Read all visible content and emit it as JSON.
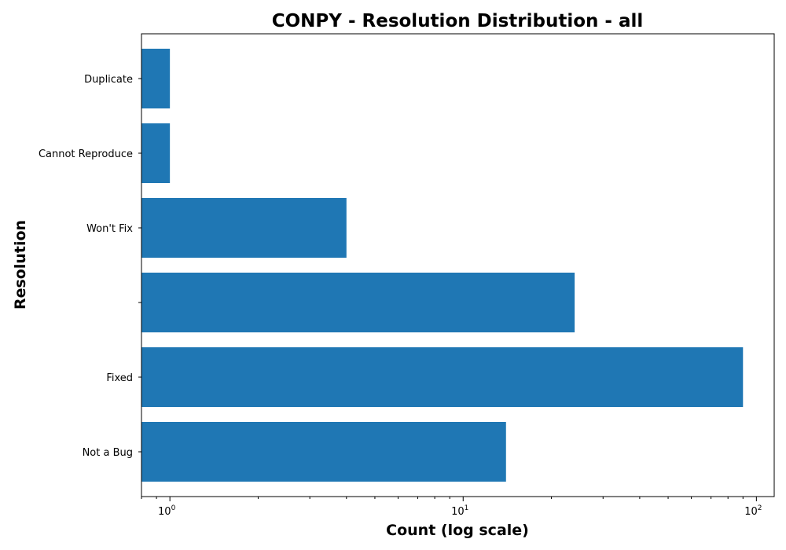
{
  "chart_data": {
    "type": "bar",
    "orientation": "horizontal",
    "title": "CONPY - Resolution Distribution - all",
    "xlabel": "Count (log scale)",
    "ylabel": "Resolution",
    "x_scale": "log",
    "xlim": [
      0.8,
      115
    ],
    "x_ticks": [
      {
        "value": 1,
        "base": "10",
        "exp": "0"
      },
      {
        "value": 10,
        "base": "10",
        "exp": "1"
      },
      {
        "value": 100,
        "base": "10",
        "exp": "2"
      }
    ],
    "categories": [
      "Not a Bug",
      "Fixed",
      "",
      "Won't Fix",
      "Cannot Reproduce",
      "Duplicate"
    ],
    "values": [
      14,
      90,
      24,
      4,
      1,
      1
    ],
    "bar_color": "#1f77b4",
    "grid": false,
    "legend": "none"
  }
}
